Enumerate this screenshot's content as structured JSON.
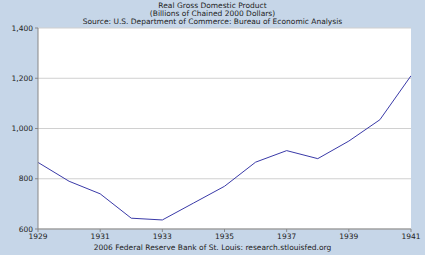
{
  "chart_data": {
    "type": "line",
    "title": "Real Gross Domestic Product",
    "subtitle": "(Billions of Chained 2000 Dollars)",
    "annotations": [
      "Source: U.S. Department of Commerce: Bureau of Economic Analysis",
      "2006 Federal Reserve Bank of St. Louis: research.stlouisfed.org"
    ],
    "x": [
      1929,
      1930,
      1931,
      1932,
      1933,
      1934,
      1935,
      1936,
      1937,
      1938,
      1939,
      1940,
      1941
    ],
    "series": [
      {
        "name": "Real Gross Domestic Product",
        "color": "#3a3aa8",
        "values": [
          865,
          790,
          740,
          643,
          636,
          703,
          770,
          866,
          912,
          880,
          950,
          1035,
          1210
        ]
      }
    ],
    "xlim": [
      1929,
      1941
    ],
    "xticks": [
      1929,
      1931,
      1933,
      1935,
      1937,
      1939,
      1941
    ],
    "ylim": [
      600,
      1400
    ],
    "yticks": [
      600,
      800,
      {
        "value": 1000,
        "label": "1,000"
      },
      {
        "value": 1200,
        "label": "1,200"
      },
      {
        "value": 1400,
        "label": "1,400"
      }
    ],
    "grid": true
  }
}
